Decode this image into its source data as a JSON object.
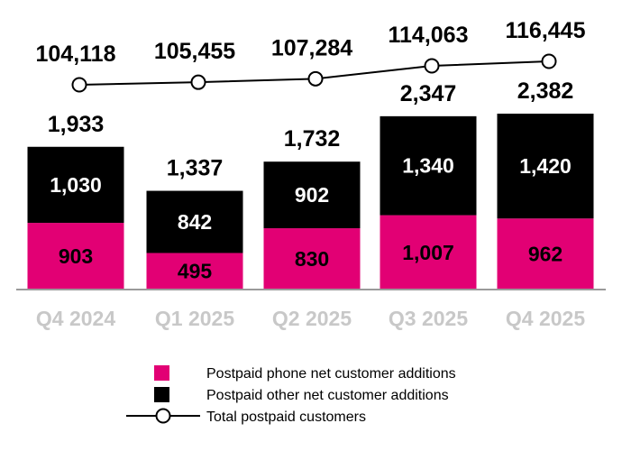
{
  "chart_data": {
    "type": "bar",
    "stacked": true,
    "categories": [
      "Q4 2024",
      "Q1 2025",
      "Q2 2025",
      "Q3 2025",
      "Q4 2025"
    ],
    "series": [
      {
        "name": "Postpaid phone net customer additions",
        "values": [
          903,
          495,
          830,
          1007,
          962
        ],
        "value_labels": [
          "903",
          "495",
          "830",
          "1,007",
          "962"
        ],
        "color": "#e20074"
      },
      {
        "name": "Postpaid other net customer additions",
        "values": [
          1030,
          842,
          902,
          1340,
          1420
        ],
        "value_labels": [
          "1,030",
          "842",
          "902",
          "1,340",
          "1,420"
        ],
        "color": "#000000"
      }
    ],
    "bar_totals": [
      1933,
      1337,
      1732,
      2347,
      2382
    ],
    "bar_total_labels": [
      "1,933",
      "1,337",
      "1,732",
      "2,347",
      "2,382"
    ],
    "line_series": {
      "name": "Total postpaid customers",
      "values": [
        104118,
        105455,
        107284,
        114063,
        116445
      ],
      "value_labels": [
        "104,118",
        "105,455",
        "107,284",
        "114,063",
        "116,445"
      ],
      "color": "#000000"
    },
    "legend_position": "bottom-center",
    "grid": false,
    "title": "",
    "xlabel": "",
    "ylabel": ""
  }
}
